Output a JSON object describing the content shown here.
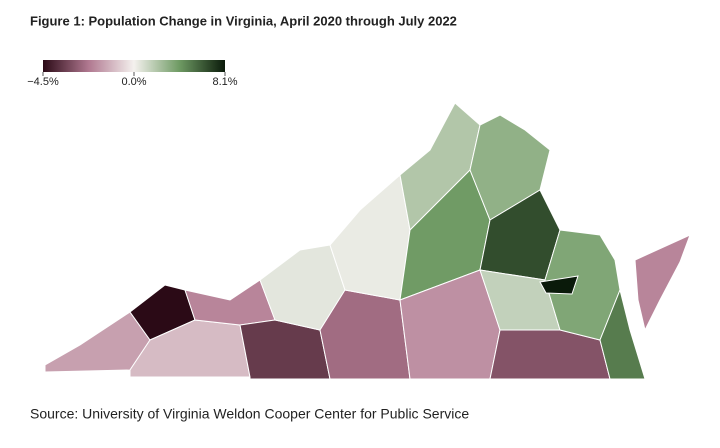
{
  "chart_data": {
    "type": "choropleth",
    "title": "Figure 1: Population Change in Virginia, April 2020 through July 2022",
    "source": "Source: University of Virginia Weldon Cooper Center for Public Service",
    "colors": [
      "#2b0a16",
      "#b07890",
      "#f4f1ee",
      "#6e9a63",
      "#0a1a0a"
    ],
    "clim": [
      -4.5,
      8.1
    ],
    "cticks": [
      {
        "value": -4.5,
        "label": "−4.5%"
      },
      {
        "value": 0,
        "label": "0.0%"
      },
      {
        "value": 8.1,
        "label": "8.1%"
      }
    ],
    "values": [
      -1.5,
      -4.5,
      -1,
      -2,
      -3.5,
      0.5,
      -2.5,
      0.3,
      2,
      4,
      -1.8,
      3,
      6.5,
      1.5,
      -3,
      3.5,
      5,
      -2,
      8.1
    ]
  }
}
